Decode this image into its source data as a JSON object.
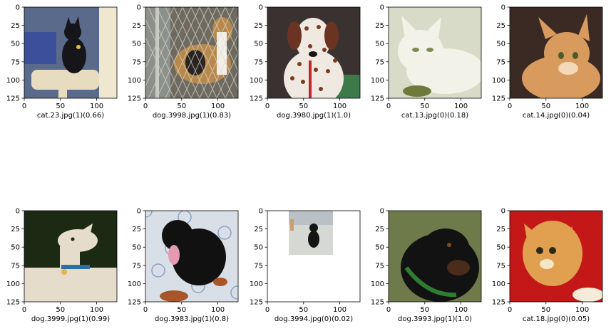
{
  "chart_data": [
    {
      "type": "image",
      "label": "cat.23.jpg(1)(0.66)",
      "subject": "black cat on cat tree",
      "palette": {
        "bg": "#5a6a8a",
        "fg": "#15151a",
        "accent": "#e8dcc0"
      },
      "xlim": [
        0,
        128
      ],
      "ylim": [
        125,
        0
      ],
      "xticks": [
        0,
        50,
        100
      ],
      "yticks": [
        0,
        25,
        50,
        75,
        100,
        125
      ]
    },
    {
      "type": "image",
      "label": "dog.3998.jpg(1)(0.83)",
      "subject": "beagle behind chain-link fence",
      "palette": {
        "bg": "#6f6a60",
        "fg": "#b8894c",
        "accent": "#d9d9d2"
      },
      "xlim": [
        0,
        128
      ],
      "ylim": [
        125,
        0
      ],
      "xticks": [
        0,
        50,
        100
      ],
      "yticks": [
        0,
        25,
        50,
        75,
        100,
        125
      ]
    },
    {
      "type": "image",
      "label": "dog.3980.jpg(1)(1.0)",
      "subject": "dalmatian with red leash",
      "palette": {
        "bg": "#3a3230",
        "fg": "#efe9e2",
        "accent": "#7b3a22"
      },
      "xlim": [
        0,
        128
      ],
      "ylim": [
        125,
        0
      ],
      "xticks": [
        0,
        50,
        100
      ],
      "yticks": [
        0,
        25,
        50,
        75,
        100,
        125
      ]
    },
    {
      "type": "image",
      "label": "cat.13.jpg(0)(0.18)",
      "subject": "white cat lying down",
      "palette": {
        "bg": "#d8dbc8",
        "fg": "#f2f2e8",
        "accent": "#6d7a3a"
      },
      "xlim": [
        0,
        128
      ],
      "ylim": [
        125,
        0
      ],
      "xticks": [
        0,
        50,
        100
      ],
      "yticks": [
        0,
        25,
        50,
        75,
        100,
        125
      ]
    },
    {
      "type": "image",
      "label": "cat.14.jpg(0)(0.04)",
      "subject": "orange tabby cat",
      "palette": {
        "bg": "#3b2a24",
        "fg": "#d99a5e",
        "accent": "#f2d9b8"
      },
      "xlim": [
        0,
        128
      ],
      "ylim": [
        125,
        0
      ],
      "xticks": [
        0,
        50,
        100
      ],
      "yticks": [
        0,
        25,
        50,
        75,
        100,
        125
      ]
    },
    {
      "type": "image",
      "label": "dog.3999.jpg(1)(0.99)",
      "subject": "greyhound with blue collar",
      "palette": {
        "bg": "#1c2a14",
        "fg": "#e6dccb",
        "accent": "#2a6fa8"
      },
      "xlim": [
        0,
        128
      ],
      "ylim": [
        125,
        0
      ],
      "xticks": [
        0,
        50,
        100
      ],
      "yticks": [
        0,
        25,
        50,
        75,
        100,
        125
      ]
    },
    {
      "type": "image",
      "label": "dog.3983.jpg(1)(0.8)",
      "subject": "black puppy on rug",
      "palette": {
        "bg": "#d9dfe6",
        "fg": "#111111",
        "accent": "#a8552a"
      },
      "xlim": [
        0,
        128
      ],
      "ylim": [
        125,
        0
      ],
      "xticks": [
        0,
        50,
        100
      ],
      "yticks": [
        0,
        25,
        50,
        75,
        100,
        125
      ]
    },
    {
      "type": "image",
      "label": "dog.3994.jpg(0)(0.02)",
      "subject": "small black dog on white background",
      "palette": {
        "bg": "#ffffff",
        "fg": "#151515",
        "accent": "#b9c1c7"
      },
      "xlim": [
        0,
        128
      ],
      "ylim": [
        125,
        0
      ],
      "xticks": [
        0,
        50,
        100
      ],
      "yticks": [
        0,
        25,
        50,
        75,
        100,
        125
      ]
    },
    {
      "type": "image",
      "label": "dog.3993.jpg(1)(1.0)",
      "subject": "rottweiler head with green collar",
      "palette": {
        "bg": "#6f7a4a",
        "fg": "#121212",
        "accent": "#2e7d32"
      },
      "xlim": [
        0,
        128
      ],
      "ylim": [
        125,
        0
      ],
      "xticks": [
        0,
        50,
        100
      ],
      "yticks": [
        0,
        25,
        50,
        75,
        100,
        125
      ]
    },
    {
      "type": "image",
      "label": "cat.18.jpg(0)(0.05)",
      "subject": "orange cat on red blanket",
      "palette": {
        "bg": "#c41818",
        "fg": "#e0a050",
        "accent": "#f6e6c8"
      },
      "xlim": [
        0,
        128
      ],
      "ylim": [
        125,
        0
      ],
      "xticks": [
        0,
        50,
        100
      ],
      "yticks": [
        0,
        25,
        50,
        75,
        100,
        125
      ]
    }
  ]
}
